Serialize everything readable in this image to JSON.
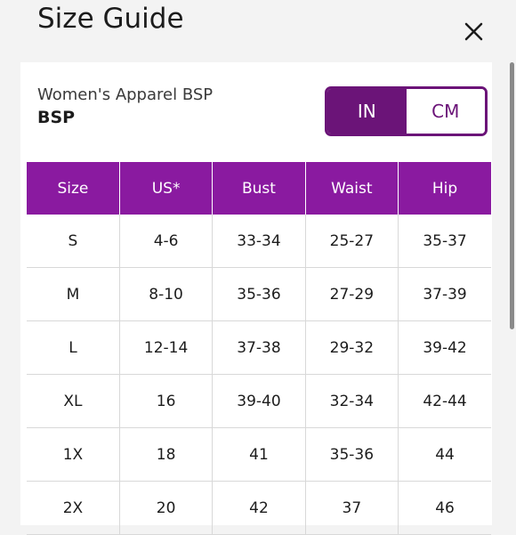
{
  "header": {
    "title": "Size Guide",
    "close_icon": "close-icon"
  },
  "product": {
    "line": "Women's Apparel BSP",
    "code": "BSP"
  },
  "units": {
    "options": [
      "IN",
      "CM"
    ],
    "selected": "IN"
  },
  "table": {
    "columns": [
      "Size",
      "US*",
      "Bust",
      "Waist",
      "Hip"
    ],
    "rows": [
      [
        "S",
        "4-6",
        "33-34",
        "25-27",
        "35-37"
      ],
      [
        "M",
        "8-10",
        "35-36",
        "27-29",
        "37-39"
      ],
      [
        "L",
        "12-14",
        "37-38",
        "29-32",
        "39-42"
      ],
      [
        "XL",
        "16",
        "39-40",
        "32-34",
        "42-44"
      ],
      [
        "1X",
        "18",
        "41",
        "35-36",
        "44"
      ],
      [
        "2X",
        "20",
        "42",
        "37",
        "46"
      ]
    ]
  },
  "colors": {
    "accent": "#6b1478",
    "header_row": "#8a1aa0"
  }
}
